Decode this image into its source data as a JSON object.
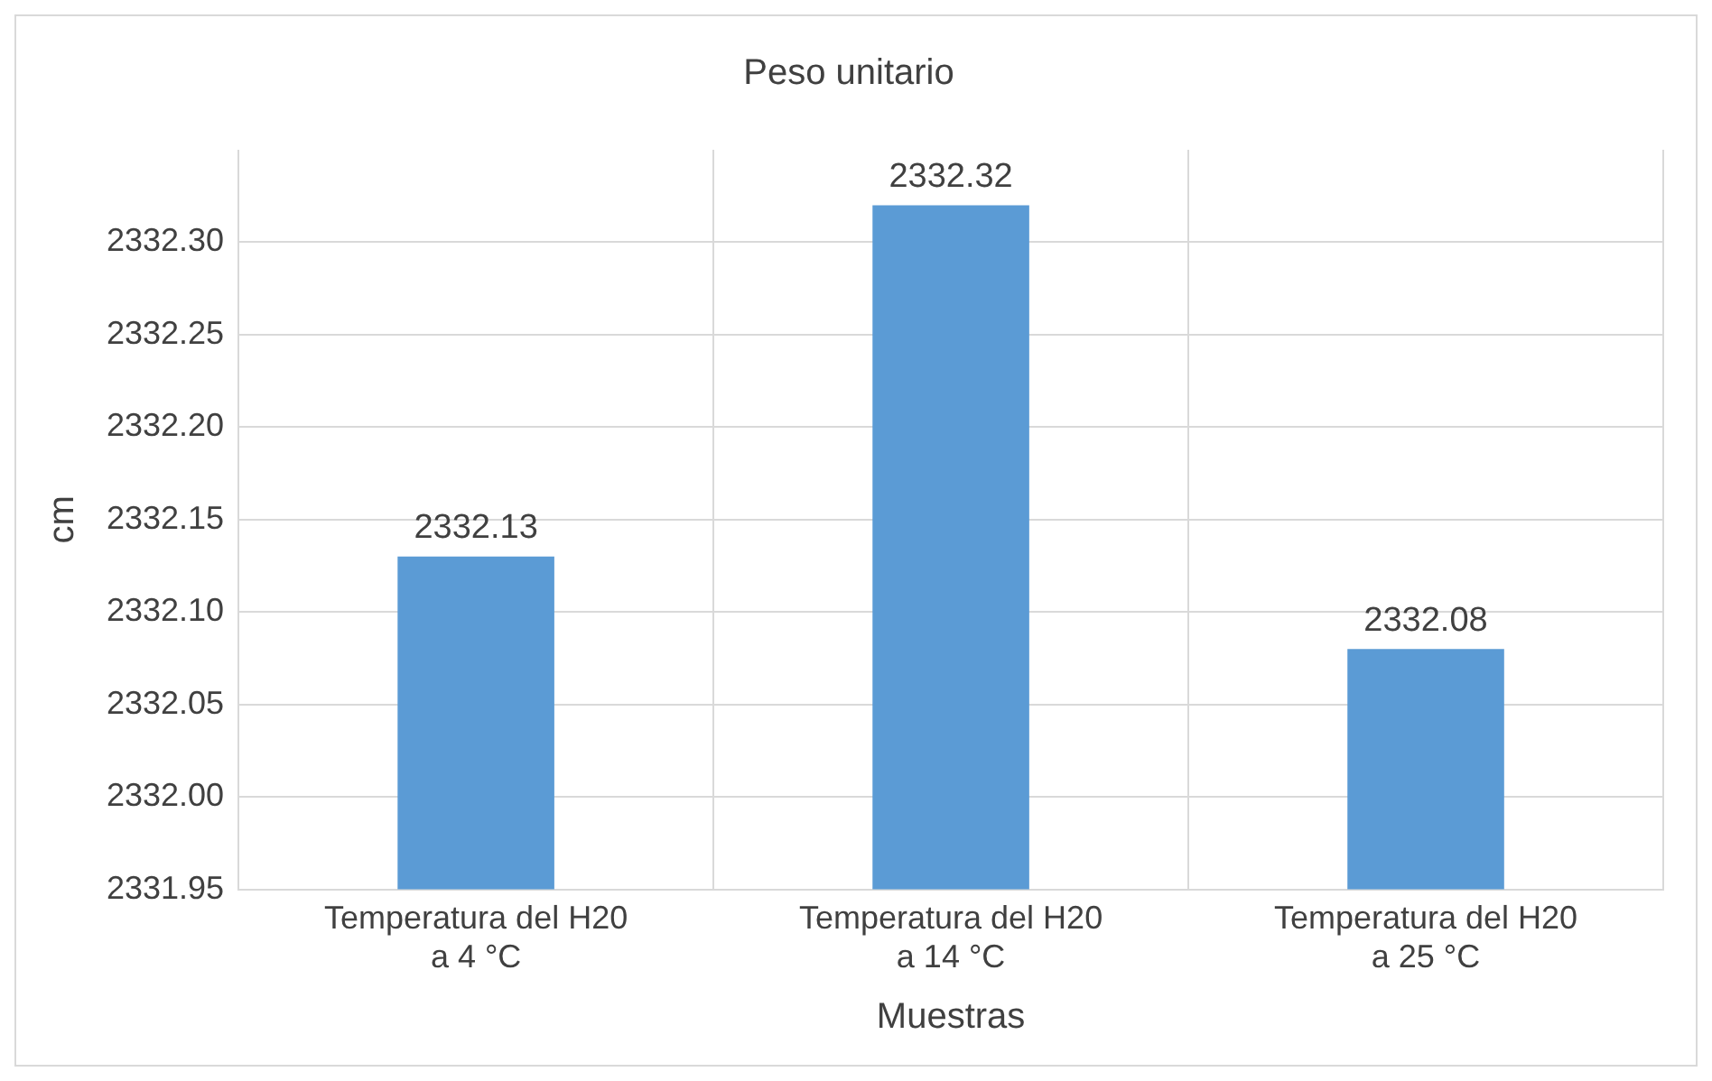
{
  "chart_data": {
    "type": "bar",
    "title": "Peso unitario",
    "xlabel": "Muestras",
    "ylabel": "cm",
    "categories": [
      "Temperatura del H20 a 4 °C",
      "Temperatura del H20 a 14 °C",
      "Temperatura del H20 a 25 °C"
    ],
    "values": [
      2332.13,
      2332.32,
      2332.08
    ],
    "color": "#5b9bd5",
    "data_labels": true,
    "ylim": [
      2331.95,
      2332.35
    ],
    "yticks": [
      {
        "value": 2331.95,
        "label": "2331.95"
      },
      {
        "value": 2332.0,
        "label": "2332.00"
      },
      {
        "value": 2332.05,
        "label": "2332.05"
      },
      {
        "value": 2332.1,
        "label": "2332.10"
      },
      {
        "value": 2332.15,
        "label": "2332.15"
      },
      {
        "value": 2332.2,
        "label": "2332.20"
      },
      {
        "value": 2332.25,
        "label": "2332.25"
      },
      {
        "value": 2332.3,
        "label": "2332.30"
      }
    ],
    "grid": true
  }
}
